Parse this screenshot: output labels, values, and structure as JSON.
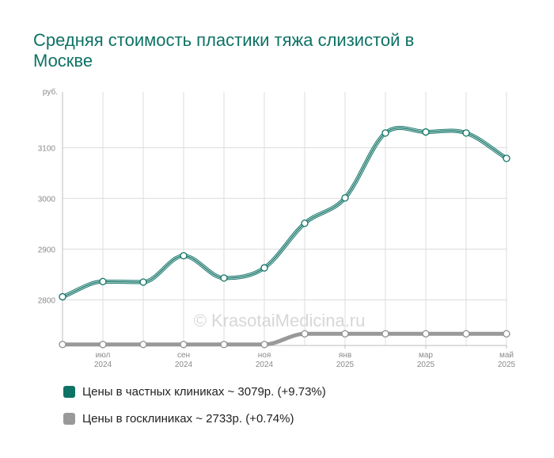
{
  "chart_data": {
    "type": "line",
    "title": "Средняя стоимость пластики тяжа слизистой в Москве",
    "ylabel": "руб.",
    "ylim": [
      2710,
      3210
    ],
    "yticks": [
      2800,
      2900,
      3000,
      3100
    ],
    "x_labels": [
      {
        "x": 1,
        "line1": "июл",
        "line2": "2024"
      },
      {
        "x": 3,
        "line1": "сен",
        "line2": "2024"
      },
      {
        "x": 5,
        "line1": "ноя",
        "line2": "2024"
      },
      {
        "x": 7,
        "line1": "янв",
        "line2": "2025"
      },
      {
        "x": 9,
        "line1": "мар",
        "line2": "2025"
      },
      {
        "x": 11,
        "line1": "май",
        "line2": "2025"
      }
    ],
    "x": [
      0,
      1,
      2,
      3,
      4,
      5,
      6,
      7,
      8,
      9,
      10,
      11
    ],
    "series": [
      {
        "name": "Цены в частных клиниках ~ 3079р. (+9.73%)",
        "color": "#0e7265",
        "values": [
          2806,
          2836,
          2835,
          2887,
          2843,
          2863,
          2951,
          3001,
          3129,
          3131,
          3129,
          3079
        ]
      },
      {
        "name": "Цены в госклиниках ~ 2733р. (+0.74%)",
        "color": "#999999",
        "values": [
          2712,
          2712,
          2712,
          2712,
          2712,
          2712,
          2733,
          2733,
          2733,
          2733,
          2733,
          2733
        ]
      }
    ],
    "grid": true,
    "legend_position": "bottom"
  },
  "watermark": "© KrasotaiMedicina.ru"
}
